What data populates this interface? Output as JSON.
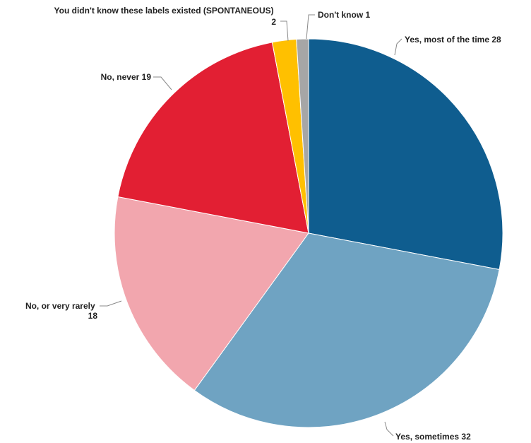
{
  "chart_data": {
    "type": "pie",
    "title": "",
    "start_angle_deg": 0,
    "direction": "clockwise",
    "slices": [
      {
        "label": "Yes, most of the time",
        "value": 28,
        "color": "#0F5D8F"
      },
      {
        "label": "Yes, sometimes",
        "value": 32,
        "color": "#6FA3C2"
      },
      {
        "label": "No, or very rarely",
        "value": 18,
        "color": "#F2A6AE"
      },
      {
        "label": "No, never",
        "value": 19,
        "color": "#E21F33"
      },
      {
        "label": "You didn't know these labels existed (SPONTANEOUS)",
        "value": 2,
        "color": "#FFC000"
      },
      {
        "label": "Don't know",
        "value": 1,
        "color": "#A6A6A6"
      }
    ]
  }
}
